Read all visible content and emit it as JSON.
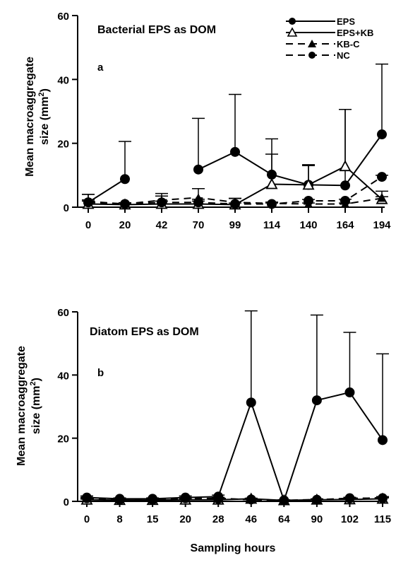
{
  "chart_data": [
    {
      "type": "line",
      "title": "Bacterial EPS as DOM",
      "panel_label": "a",
      "ylabel_line1": "Mean macroaggregate",
      "ylabel_line2": "size (mm",
      "ylabel_sup": "2",
      "ylabel_close": ")",
      "ylim": [
        0,
        60
      ],
      "yticks": [
        0,
        20,
        40,
        60
      ],
      "categories": [
        "0",
        "20",
        "42",
        "70",
        "99",
        "114",
        "140",
        "164",
        "194"
      ],
      "legend_position": "top-right",
      "series": [
        {
          "name": "EPS",
          "marker": "filled-circle",
          "dash": "solid",
          "values": [
            1.5,
            8.8,
            null,
            11.8,
            17.3,
            10.2,
            7.0,
            6.8,
            22.8
          ],
          "error": [
            2.5,
            11.8,
            null,
            16.0,
            18.0,
            11.2,
            6.0,
            23.8,
            22.0
          ]
        },
        {
          "name": "EPS+KB",
          "marker": "open-triangle",
          "dash": "solid",
          "values": [
            1.0,
            0.8,
            1.0,
            1.0,
            0.8,
            7.2,
            7.0,
            12.8,
            2.5
          ],
          "error": [
            3.0,
            0.6,
            3.3,
            1.5,
            2.0,
            9.4,
            6.3,
            17.8,
            2.5
          ]
        },
        {
          "name": "KB-C",
          "marker": "filled-triangle",
          "dash": "dash",
          "values": [
            1.8,
            1.0,
            2.2,
            3.0,
            1.5,
            1.2,
            1.0,
            1.0,
            2.8
          ],
          "error": [
            0.5,
            0.3,
            1.3,
            2.8,
            1.2,
            0.4,
            0.3,
            0.3,
            0.5
          ]
        },
        {
          "name": "NC",
          "marker": "filled-circle",
          "dash": "dash",
          "values": [
            1.5,
            1.0,
            1.5,
            1.5,
            1.0,
            1.0,
            2.0,
            2.0,
            9.5
          ],
          "error": [
            0.4,
            0.3,
            0.4,
            0.4,
            0.3,
            0.3,
            0.4,
            0.5,
            0.5
          ]
        }
      ]
    },
    {
      "type": "line",
      "title": "Diatom EPS as DOM",
      "panel_label": "b",
      "ylabel_line1": "Mean macroaggregate",
      "ylabel_line2": "size (mm",
      "ylabel_sup": "2",
      "ylabel_close": ")",
      "ylim": [
        0,
        60
      ],
      "yticks": [
        0,
        20,
        40,
        60
      ],
      "categories": [
        "0",
        "8",
        "15",
        "20",
        "28",
        "46",
        "64",
        "90",
        "102",
        "115"
      ],
      "xlabel": "Sampling hours",
      "series": [
        {
          "name": "EPS",
          "marker": "filled-circle",
          "dash": "solid",
          "values": [
            1.2,
            0.8,
            0.8,
            1.2,
            1.5,
            31.3,
            0.3,
            32.0,
            34.5,
            19.4
          ],
          "error": [
            0.5,
            0.3,
            0.3,
            0.5,
            0.5,
            29.0,
            0.2,
            27.0,
            19.0,
            27.3
          ]
        },
        {
          "name": "EPS+KB",
          "marker": "open-triangle",
          "dash": "solid",
          "values": [
            0.5,
            0.4,
            0.4,
            0.5,
            0.5,
            0.8,
            0.3,
            0.5,
            0.6,
            0.8
          ],
          "error": [
            0.2,
            0.2,
            0.2,
            0.2,
            0.2,
            0.2,
            0.1,
            0.2,
            0.2,
            0.3
          ]
        },
        {
          "name": "KB-C",
          "marker": "filled-triangle",
          "dash": "dash",
          "values": [
            0.8,
            0.6,
            0.6,
            0.8,
            1.0,
            0.5,
            0.3,
            0.6,
            0.8,
            1.2
          ],
          "error": [
            0.2,
            0.2,
            0.2,
            0.2,
            0.3,
            0.2,
            0.1,
            0.2,
            0.2,
            0.3
          ]
        },
        {
          "name": "NC",
          "marker": "filled-circle",
          "dash": "dash",
          "values": [
            1.0,
            0.5,
            0.5,
            1.0,
            0.8,
            0.6,
            0.3,
            0.5,
            1.0,
            1.0
          ],
          "error": [
            0.3,
            0.2,
            0.2,
            0.3,
            0.3,
            0.2,
            0.1,
            0.2,
            0.3,
            0.3
          ]
        }
      ]
    }
  ]
}
